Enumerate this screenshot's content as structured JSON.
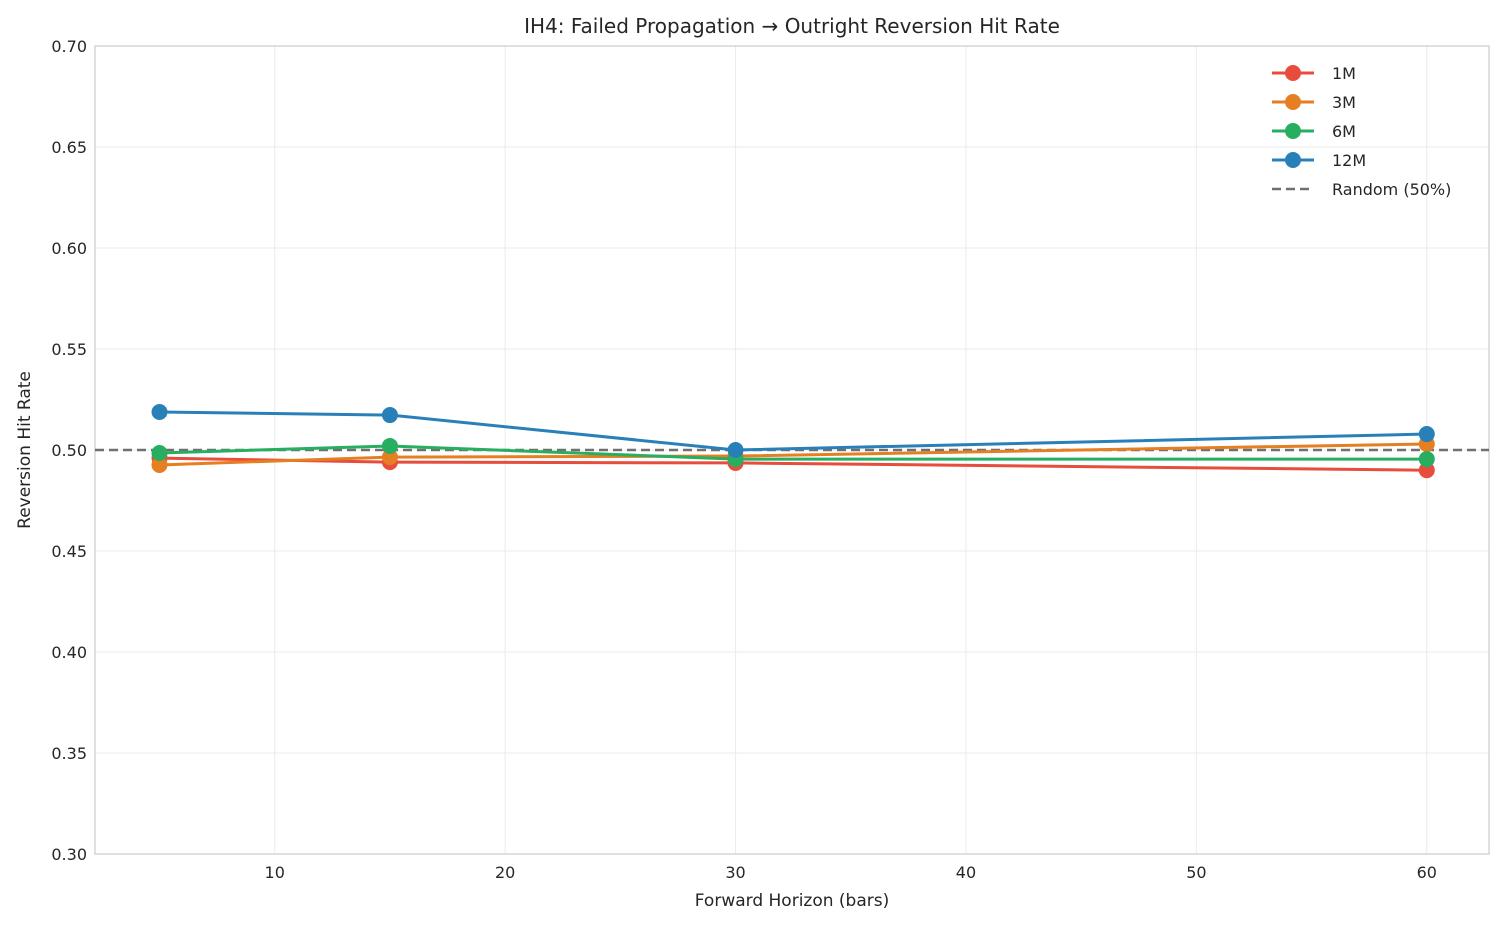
{
  "chart_data": {
    "type": "line",
    "title": "IH4: Failed Propagation → Outright Reversion Hit Rate",
    "xlabel": "Forward Horizon (bars)",
    "ylabel": "Reversion Hit Rate",
    "xlim": [
      2.2,
      62.7
    ],
    "ylim": [
      0.3,
      0.7
    ],
    "xticks": [
      10,
      20,
      30,
      40,
      50,
      60
    ],
    "yticks": [
      0.3,
      0.35,
      0.4,
      0.45,
      0.5,
      0.55,
      0.6,
      0.65,
      0.7
    ],
    "grid": true,
    "legend_position": "top-right",
    "x": [
      5,
      15,
      30,
      60
    ],
    "series": [
      {
        "name": "1M",
        "color": "#e74c3c",
        "values": [
          0.496,
          0.494,
          0.4936,
          0.49
        ]
      },
      {
        "name": "3M",
        "color": "#e67e22",
        "values": [
          0.4926,
          0.4965,
          0.497,
          0.503
        ]
      },
      {
        "name": "6M",
        "color": "#27ae60",
        "values": [
          0.4985,
          0.502,
          0.4955,
          0.4955
        ]
      },
      {
        "name": "12M",
        "color": "#2980b9",
        "values": [
          0.5188,
          0.5173,
          0.5,
          0.5079
        ]
      }
    ],
    "reference_line": {
      "name": "Random (50%)",
      "value": 0.5,
      "color": "#707070",
      "style": "dashed"
    }
  }
}
